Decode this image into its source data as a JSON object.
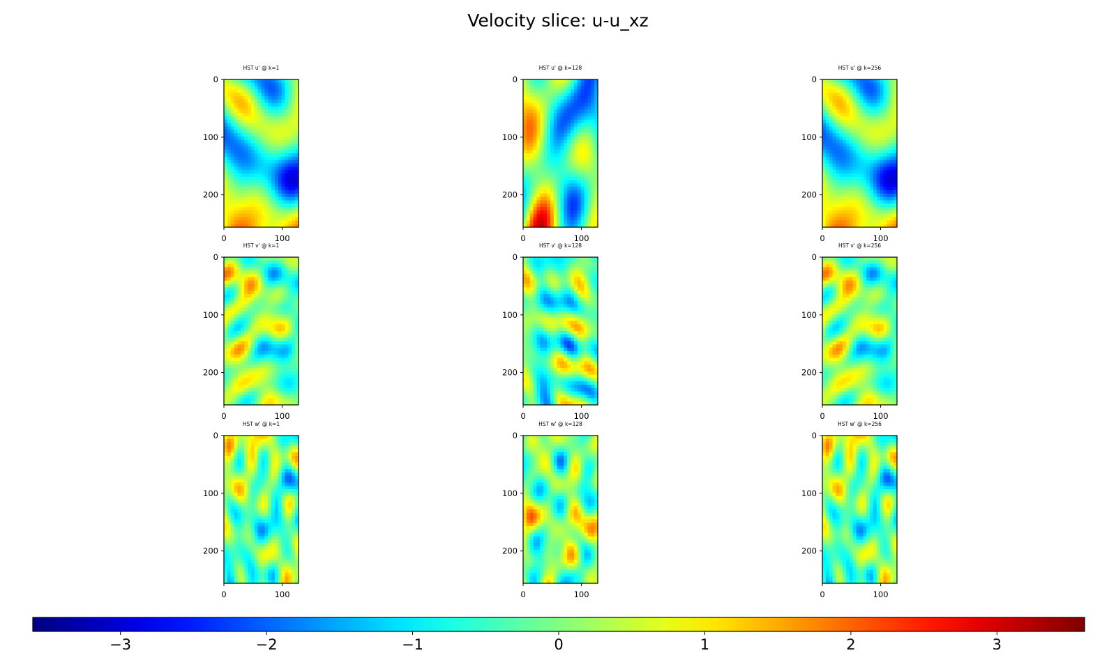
{
  "figure": {
    "title": "Velocity slice: u-u_xz"
  },
  "colors": {
    "background": "#ffffff",
    "axis": "#000000",
    "colormap": "jet"
  },
  "chart_data": {
    "type": "heatmap",
    "title": "Velocity slice: u-u_xz",
    "grid": false,
    "panel_x_range": [
      0,
      128
    ],
    "panel_y_range": [
      0,
      256
    ],
    "panel_y_inverted": true,
    "x_ticks": [
      0,
      100
    ],
    "y_ticks": [
      0,
      100,
      200
    ],
    "panels": [
      {
        "title": "HST u' @ k=1",
        "row": 0,
        "col": 0,
        "seed": 11,
        "amplitude": 2.6,
        "scale": 1.6
      },
      {
        "title": "HST u' @ k=128",
        "row": 0,
        "col": 1,
        "seed": 23,
        "amplitude": 2.6,
        "scale": 1.6
      },
      {
        "title": "HST u' @ k=256",
        "row": 0,
        "col": 2,
        "seed": 11,
        "amplitude": 2.6,
        "scale": 1.6
      },
      {
        "title": "HST v' @ k=1",
        "row": 1,
        "col": 0,
        "seed": 37,
        "amplitude": 1.4,
        "scale": 3.2
      },
      {
        "title": "HST v' @ k=128",
        "row": 1,
        "col": 1,
        "seed": 41,
        "amplitude": 1.4,
        "scale": 3.2
      },
      {
        "title": "HST v' @ k=256",
        "row": 1,
        "col": 2,
        "seed": 37,
        "amplitude": 1.4,
        "scale": 3.2
      },
      {
        "title": "HST w' @ k=1",
        "row": 2,
        "col": 0,
        "seed": 53,
        "amplitude": 1.5,
        "scale": 3.4
      },
      {
        "title": "HST w' @ k=128",
        "row": 2,
        "col": 1,
        "seed": 59,
        "amplitude": 1.5,
        "scale": 3.4
      },
      {
        "title": "HST w' @ k=256",
        "row": 2,
        "col": 2,
        "seed": 53,
        "amplitude": 1.5,
        "scale": 3.4
      }
    ],
    "colorbar": {
      "orientation": "horizontal",
      "range": [
        -3.6,
        3.6
      ],
      "ticks": [
        -3,
        -2,
        -1,
        0,
        1,
        2,
        3
      ],
      "tick_labels": [
        "−3",
        "−2",
        "−1",
        "0",
        "1",
        "2",
        "3"
      ]
    }
  }
}
